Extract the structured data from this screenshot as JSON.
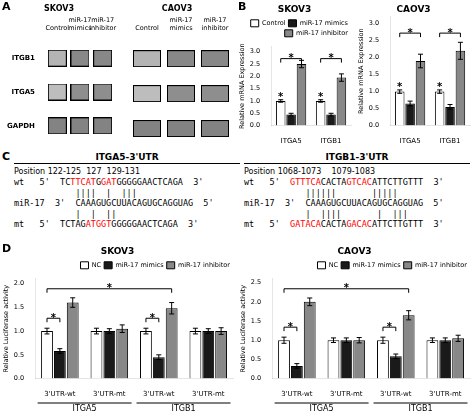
{
  "chart_data": [
    {
      "type": "heatmap",
      "title": "SKOV3",
      "categories": [
        "Control",
        "miR-17\nmimics",
        "miR-17\ninhibitor"
      ],
      "rows": [
        "ITGB1",
        "ITGA5",
        "GAPDH"
      ],
      "cells": [
        [
          0.45,
          0.72,
          0.72
        ],
        [
          0.4,
          0.68,
          0.68
        ],
        [
          0.75,
          0.75,
          0.75
        ]
      ],
      "annotations": [
        {
          "text": "A"
        }
      ]
    },
    {
      "type": "heatmap",
      "title": "CAOV3",
      "categories": [
        "Control",
        "miR-17\nmimics",
        "miR-17\ninhibitor"
      ],
      "rows": [
        null,
        null,
        null
      ],
      "cells": [
        [
          0.45,
          0.72,
          0.72
        ],
        [
          0.4,
          0.68,
          0.68
        ],
        [
          0.75,
          0.75,
          0.75
        ]
      ],
      "tick_labels": "x"
    },
    {
      "type": "bar",
      "title": "SKOV3",
      "ylabel": "Relative mRNA Expression",
      "categories": [
        "ITGA5",
        "ITGB1"
      ],
      "series": [
        {
          "name": "Control",
          "color": "#ffffff",
          "values": [
            1.0,
            1.0
          ],
          "errors": [
            0.05,
            0.05
          ]
        },
        {
          "name": "miR-17 mimics",
          "color": "#1a1a1a",
          "values": [
            0.45,
            0.45
          ],
          "errors": [
            0.05,
            0.05
          ]
        },
        {
          "name": "miR-17 inhibitor",
          "color": "#888888",
          "values": [
            2.5,
            1.95
          ],
          "errors": [
            0.15,
            0.15
          ]
        }
      ],
      "ylim": [
        0,
        3.2
      ],
      "yticks": [
        {
          "value": 0,
          "label": "0.0"
        },
        {
          "value": 0.5,
          "label": "0.5"
        },
        {
          "value": 1,
          "label": "1.0"
        },
        {
          "value": 1.5,
          "label": "1.5"
        },
        {
          "value": 2,
          "label": "2.0"
        },
        {
          "value": 2.5,
          "label": "2.5"
        },
        {
          "value": 3,
          "label": "3.0"
        }
      ],
      "grid": false,
      "legend": "upper right",
      "annotations": [
        {
          "text": "B"
        },
        {
          "text": "*",
          "from": {
            "category": 0,
            "series": "Control"
          },
          "to": {
            "category": 0,
            "series": "miR-17 inhibitor"
          },
          "y": 2.72
        },
        {
          "text": "*",
          "from": {
            "category": 1,
            "series": "Control"
          },
          "to": {
            "category": 1,
            "series": "miR-17 inhibitor"
          },
          "y": 2.72
        },
        {
          "text": "*",
          "category": 0,
          "series": "Control"
        },
        {
          "text": "*",
          "category": 1,
          "series": "Control"
        }
      ]
    },
    {
      "type": "bar",
      "title": "CAOV3",
      "ylabel": "Relative mRNA Expression",
      "categories": [
        "ITGA5",
        "ITGB1"
      ],
      "series": [
        {
          "name": "Control",
          "color": "#ffffff",
          "values": [
            1.0,
            1.0
          ],
          "errors": [
            0.05,
            0.05
          ]
        },
        {
          "name": "miR-17 mimics",
          "color": "#1a1a1a",
          "values": [
            0.65,
            0.55
          ],
          "errors": [
            0.07,
            0.07
          ]
        },
        {
          "name": "miR-17 inhibitor",
          "color": "#888888",
          "values": [
            1.9,
            2.2
          ],
          "errors": [
            0.2,
            0.25
          ]
        }
      ],
      "ylim": [
        0,
        3.2
      ],
      "yticks": [
        {
          "value": 0,
          "label": "0.0"
        },
        {
          "value": 0.5,
          "label": "0.5"
        },
        {
          "value": 1,
          "label": "1.0"
        },
        {
          "value": 1.5,
          "label": "1.5"
        },
        {
          "value": 2,
          "label": "2.0"
        },
        {
          "value": 2.5,
          "label": "2.5"
        },
        {
          "value": 3,
          "label": "3.0"
        }
      ],
      "grid": false,
      "annotations": [
        {
          "text": "*",
          "from": {
            "category": 0,
            "series": "Control"
          },
          "to": {
            "category": 0,
            "series": "miR-17 inhibitor"
          },
          "y": 2.72
        },
        {
          "text": "*",
          "from": {
            "category": 1,
            "series": "Control"
          },
          "to": {
            "category": 1,
            "series": "miR-17 inhibitor"
          },
          "y": 2.72
        },
        {
          "text": "*",
          "category": 0,
          "series": "Control"
        },
        {
          "text": "*",
          "category": 1,
          "series": "Control"
        }
      ]
    },
    {
      "type": "text",
      "annotations": [
        {
          "text": "C"
        }
      ],
      "blocks": [
        {
          "title": "ITGA5-3'UTR",
          "lines": [
            [
              {
                "text": "Position 122-125  127  129-131"
              }
            ],
            [
              {
                "text": "wt   5'  TC"
              },
              {
                "text": "TTCAT",
                "color": "red"
              },
              {
                "text": "G"
              },
              {
                "text": "GAT",
                "color": "red"
              },
              {
                "text": "GGGGGAACTCAGA  3'"
              }
            ],
            [
              {
                "text": "||||  |  |||"
              }
            ],
            [
              {
                "text": "miR-17  3'  CAAAGUGCUUACAGUGCAGGUAG  5'"
              }
            ],
            [
              {
                "text": "|  |  ||"
              }
            ],
            [
              {
                "text": "mt   5'  TCTAG"
              },
              {
                "text": "AT",
                "color": "red"
              },
              {
                "text": "GGT",
                "color": "red"
              },
              {
                "text": "GGGGGAACTCAGA  3'"
              }
            ]
          ]
        },
        {
          "title": "ITGB1-3'UTR",
          "lines": [
            [
              {
                "text": "Position 1068-1073    1079-1083"
              }
            ],
            [
              {
                "text": "wt   5'  "
              },
              {
                "text": "GTTTCA",
                "color": "red"
              },
              {
                "text": "CACTA"
              },
              {
                "text": "GTCAC",
                "color": "red"
              },
              {
                "text": "ATTCTTGTTT  3'"
              }
            ],
            [
              {
                "text": "||||||       |||||"
              }
            ],
            [
              {
                "text": "miR-17  3'  CAAAGUGCUUACAGUGCAGGUAG  5'"
              }
            ],
            [
              {
                "text": "|  ||||       |  |||"
              }
            ],
            [
              {
                "text": "mt   5'  "
              },
              {
                "text": "GATACA",
                "color": "red"
              },
              {
                "text": "CACTA"
              },
              {
                "text": "GACAC",
                "color": "red"
              },
              {
                "text": "ATTCTTGTTT  3'"
              }
            ]
          ]
        }
      ]
    },
    {
      "type": "bar",
      "title": "SKOV3",
      "ylabel": "Relative Luciferase activity",
      "categories": [
        "3'UTR-wt",
        "3'UTR-mt",
        "3'UTR-wt",
        "3'UTR-mt"
      ],
      "group_labels": [
        "ITGA5",
        "ITGB1"
      ],
      "series": [
        {
          "name": "NC",
          "color": "#ffffff",
          "values": [
            1.0,
            1.0,
            1.0,
            1.0
          ],
          "errors": [
            0.06,
            0.06,
            0.06,
            0.06
          ]
        },
        {
          "name": "miR-17 mimics",
          "color": "#1a1a1a",
          "values": [
            0.58,
            1.0,
            0.45,
            1.0
          ],
          "errors": [
            0.05,
            0.05,
            0.05,
            0.05
          ]
        },
        {
          "name": "miR-17 inhibitor",
          "color": "#888888",
          "values": [
            1.6,
            1.05,
            1.48,
            1.0
          ],
          "errors": [
            0.1,
            0.08,
            0.12,
            0.07
          ]
        }
      ],
      "ylim": [
        0,
        2.1
      ],
      "yticks": [
        {
          "value": 0,
          "label": "0.0"
        },
        {
          "value": 0.5,
          "label": "0.5"
        },
        {
          "value": 1,
          "label": "1.0"
        },
        {
          "value": 1.5,
          "label": "1.5"
        },
        {
          "value": 2,
          "label": "2.0"
        }
      ],
      "grid": false,
      "legend": "upper right",
      "annotations": [
        {
          "text": "D"
        },
        {
          "text": "*",
          "from": {
            "category": 0,
            "series": "NC"
          },
          "to": {
            "category": 0,
            "series": "miR-17 mimics"
          },
          "y": 1.27
        },
        {
          "text": "*",
          "from": {
            "category": 0,
            "series": "NC"
          },
          "to": {
            "category": 2,
            "series": "miR-17 inhibitor"
          },
          "y": 1.89
        },
        {
          "text": "*",
          "from": {
            "category": 2,
            "series": "NC"
          },
          "to": {
            "category": 2,
            "series": "miR-17 mimics"
          },
          "y": 1.27
        }
      ]
    },
    {
      "type": "bar",
      "title": "CAOV3",
      "ylabel": "Relative Luciferase activity",
      "categories": [
        "3'UTR-wt",
        "3'UTR-mt",
        "3'UTR-wt",
        "3'UTR-mt"
      ],
      "group_labels": [
        "ITGA5",
        "ITGB1"
      ],
      "series": [
        {
          "name": "NC",
          "color": "#ffffff",
          "values": [
            1.0,
            1.0,
            1.0,
            1.0
          ],
          "errors": [
            0.08,
            0.06,
            0.08,
            0.06
          ]
        },
        {
          "name": "miR-17 mimics",
          "color": "#1a1a1a",
          "values": [
            0.33,
            1.0,
            0.58,
            1.0
          ],
          "errors": [
            0.06,
            0.06,
            0.06,
            0.06
          ]
        },
        {
          "name": "miR-17 inhibitor",
          "color": "#888888",
          "values": [
            2.0,
            1.0,
            1.65,
            1.05
          ],
          "errors": [
            0.1,
            0.07,
            0.12,
            0.08
          ]
        }
      ],
      "ylim": [
        0,
        2.6
      ],
      "yticks": [
        {
          "value": 0,
          "label": "0.0"
        },
        {
          "value": 0.5,
          "label": "0.5"
        },
        {
          "value": 1,
          "label": "1.0"
        },
        {
          "value": 1.5,
          "label": "1.5"
        },
        {
          "value": 2,
          "label": "2.0"
        },
        {
          "value": 2.5,
          "label": "2.5"
        }
      ],
      "grid": false,
      "legend": "upper right",
      "annotations": [
        {
          "text": "*",
          "from": {
            "category": 0,
            "series": "NC"
          },
          "to": {
            "category": 0,
            "series": "miR-17 mimics"
          },
          "y": 1.34
        },
        {
          "text": "*",
          "from": {
            "category": 0,
            "series": "NC"
          },
          "to": {
            "category": 2,
            "series": "miR-17 inhibitor"
          },
          "y": 2.34
        },
        {
          "text": "*",
          "from": {
            "category": 2,
            "series": "NC"
          },
          "to": {
            "category": 2,
            "series": "miR-17 mimics"
          },
          "y": 1.34
        }
      ]
    }
  ]
}
